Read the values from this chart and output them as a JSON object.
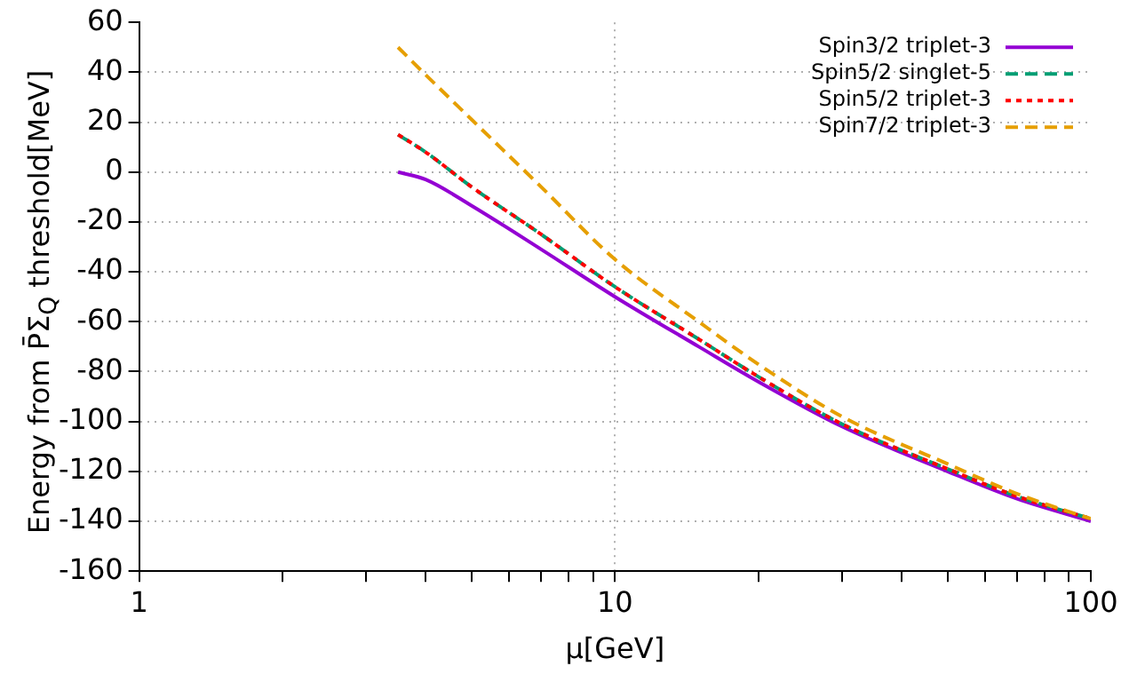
{
  "chart_data": {
    "type": "line",
    "xlabel": "μ[GeV]",
    "ylabel": "Energy from P̄Σ$_{Q}$ threshold[MeV]",
    "log": "x",
    "xlim": [
      1,
      100
    ],
    "xticks": [
      1,
      {
        "value": 2,
        "label": null
      },
      {
        "value": 3,
        "label": null
      },
      {
        "value": 4,
        "label": null
      },
      {
        "value": 5,
        "label": null
      },
      {
        "value": 6,
        "label": null
      },
      {
        "value": 7,
        "label": null
      },
      {
        "value": 8,
        "label": null
      },
      {
        "value": 9,
        "label": null
      },
      10,
      {
        "value": 20,
        "label": null
      },
      {
        "value": 30,
        "label": null
      },
      {
        "value": 40,
        "label": null
      },
      {
        "value": 50,
        "label": null
      },
      {
        "value": 60,
        "label": null
      },
      {
        "value": 70,
        "label": null
      },
      {
        "value": 80,
        "label": null
      },
      {
        "value": 90,
        "label": null
      },
      100
    ],
    "ylim": [
      -160,
      60
    ],
    "yticks": [
      -160,
      -140,
      -120,
      -100,
      -80,
      -60,
      -40,
      -20,
      0,
      20,
      40,
      60
    ],
    "grid": true,
    "legend": "top right",
    "marker": "none",
    "x": [
      3.5,
      4,
      5,
      7,
      10,
      15,
      20,
      30,
      50,
      70,
      100
    ],
    "series": [
      {
        "name": "Spin3/2 triplet-3",
        "color": "#9400d3",
        "line_style": "solid",
        "values": [
          0,
          -3,
          -13.5,
          -31,
          -50,
          -70,
          -84,
          -102,
          -120,
          -131,
          -140
        ]
      },
      {
        "name": "Spin5/2 singlet-5",
        "color": "#009e73",
        "line_style": "dashed",
        "values": [
          15,
          8,
          -6,
          -25,
          -46,
          -67,
          -82,
          -101,
          -119,
          -130,
          -139
        ]
      },
      {
        "name": "Spin5/2 triplet-3",
        "color": "#ff0000",
        "line_style": "dotted",
        "values": [
          15,
          8,
          -6,
          -25,
          -46,
          -67,
          -82,
          -101,
          -119,
          -130,
          -139
        ]
      },
      {
        "name": "Spin7/2 triplet-3",
        "color": "#e69f00",
        "line_style": "dashed",
        "values": [
          50,
          39,
          21,
          -6,
          -35,
          -60,
          -77,
          -98,
          -117,
          -129,
          -139
        ]
      }
    ]
  }
}
